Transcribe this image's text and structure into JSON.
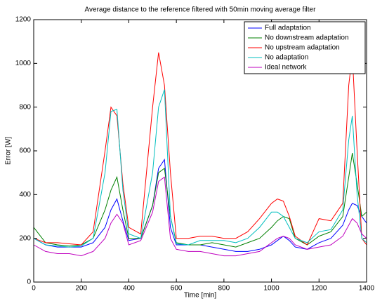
{
  "chart_data": {
    "type": "line",
    "title": "Average distance to the reference filtered with 50min moving average filter",
    "x_label": "Time [min]",
    "y_label": "Error [W]",
    "x": [
      0,
      50,
      100,
      150,
      200,
      250,
      300,
      325,
      350,
      375,
      400,
      450,
      500,
      525,
      550,
      575,
      600,
      650,
      700,
      750,
      800,
      850,
      900,
      950,
      1000,
      1025,
      1050,
      1075,
      1100,
      1150,
      1200,
      1250,
      1300,
      1325,
      1340,
      1360,
      1380,
      1400
    ],
    "series": [
      {
        "name": "Full adaptation",
        "color": "#0000ff",
        "values": [
          200,
          170,
          160,
          160,
          160,
          180,
          250,
          330,
          380,
          280,
          190,
          200,
          350,
          520,
          560,
          250,
          170,
          170,
          170,
          160,
          150,
          140,
          140,
          150,
          170,
          190,
          210,
          190,
          160,
          150,
          180,
          200,
          260,
          330,
          360,
          350,
          300,
          270
        ]
      },
      {
        "name": "No downstream adaptation",
        "color": "#008000",
        "values": [
          250,
          180,
          170,
          165,
          170,
          200,
          330,
          420,
          480,
          330,
          200,
          200,
          350,
          500,
          520,
          300,
          180,
          170,
          170,
          180,
          170,
          160,
          180,
          200,
          250,
          280,
          300,
          290,
          200,
          170,
          210,
          230,
          300,
          480,
          590,
          450,
          300,
          320
        ]
      },
      {
        "name": "No upstream adaptation",
        "color": "#ff0000",
        "values": [
          200,
          180,
          180,
          175,
          170,
          230,
          600,
          800,
          760,
          450,
          250,
          220,
          800,
          1050,
          900,
          500,
          200,
          200,
          210,
          210,
          200,
          200,
          230,
          290,
          360,
          380,
          370,
          300,
          210,
          170,
          290,
          280,
          360,
          900,
          1040,
          600,
          200,
          170
        ]
      },
      {
        "name": "No adaptation",
        "color": "#00bfbf",
        "values": [
          200,
          170,
          165,
          160,
          165,
          200,
          500,
          780,
          790,
          420,
          220,
          200,
          500,
          800,
          880,
          300,
          175,
          170,
          190,
          190,
          190,
          180,
          200,
          250,
          320,
          320,
          300,
          250,
          200,
          180,
          230,
          240,
          330,
          650,
          760,
          400,
          200,
          180
        ]
      },
      {
        "name": "Ideal network",
        "color": "#bf00bf",
        "values": [
          170,
          140,
          130,
          130,
          120,
          140,
          200,
          270,
          310,
          270,
          170,
          190,
          320,
          460,
          480,
          200,
          150,
          140,
          140,
          130,
          120,
          120,
          130,
          140,
          180,
          200,
          210,
          200,
          170,
          150,
          160,
          170,
          210,
          260,
          290,
          270,
          220,
          200
        ]
      }
    ],
    "xlim": [
      0,
      1400
    ],
    "xticks": [
      0,
      200,
      400,
      600,
      800,
      1000,
      1200,
      1400
    ],
    "ylim": [
      0,
      1200
    ],
    "yticks": [
      0,
      200,
      400,
      600,
      800,
      1000,
      1200
    ],
    "legend": "top-right"
  }
}
